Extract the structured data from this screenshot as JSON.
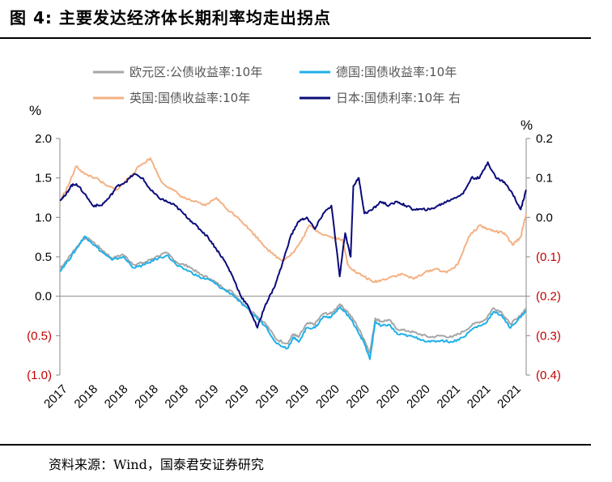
{
  "title": "图 4:  主要发达经济体长期利率均走出拐点",
  "source": "资料来源：Wind，国泰君安证券研究",
  "chart_data": {
    "type": "line",
    "y_left_label": "%",
    "y_right_label": "%",
    "y_left_range": [
      -1.0,
      2.0
    ],
    "y_right_range": [
      -0.4,
      0.2
    ],
    "y_left_ticks": [
      "2.0",
      "1.5",
      "1.0",
      "0.5",
      "0.0",
      "(0.5)",
      "(1.0)"
    ],
    "y_right_ticks": [
      "0.2",
      "0.1",
      "0.0",
      "(0.1)",
      "(0.2)",
      "(0.3)",
      "(0.4)"
    ],
    "x_ticks": [
      "2017",
      "2018",
      "2018",
      "2018",
      "2018",
      "2019",
      "2019",
      "2019",
      "2019",
      "2020",
      "2020",
      "2020",
      "2020",
      "2021",
      "2021",
      "2021"
    ],
    "x_range": [
      2017.9,
      2021.3
    ],
    "negative_tick_color": "#c00000",
    "grid": false,
    "legend_position": "top",
    "series": [
      {
        "name": "欧元区:公债收益率:10年",
        "axis": "left",
        "color": "#a6a6a6",
        "x": [
          2017.9,
          2017.96,
          2018.02,
          2018.08,
          2018.12,
          2018.2,
          2018.28,
          2018.36,
          2018.44,
          2018.52,
          2018.6,
          2018.68,
          2018.76,
          2018.84,
          2018.92,
          2019.0,
          2019.08,
          2019.16,
          2019.24,
          2019.32,
          2019.4,
          2019.48,
          2019.56,
          2019.6,
          2019.64,
          2019.7,
          2019.76,
          2019.82,
          2019.88,
          2019.94,
          2020.0,
          2020.06,
          2020.12,
          2020.16,
          2020.2,
          2020.24,
          2020.3,
          2020.36,
          2020.44,
          2020.52,
          2020.6,
          2020.68,
          2020.76,
          2020.84,
          2020.92,
          2021.0,
          2021.06,
          2021.12,
          2021.18,
          2021.24,
          2021.3
        ],
        "y": [
          0.35,
          0.48,
          0.62,
          0.74,
          0.72,
          0.6,
          0.48,
          0.53,
          0.4,
          0.43,
          0.5,
          0.55,
          0.42,
          0.38,
          0.28,
          0.22,
          0.12,
          0.05,
          -0.1,
          -0.22,
          -0.35,
          -0.55,
          -0.6,
          -0.48,
          -0.52,
          -0.35,
          -0.35,
          -0.22,
          -0.22,
          -0.1,
          -0.2,
          -0.35,
          -0.55,
          -0.72,
          -0.28,
          -0.32,
          -0.3,
          -0.42,
          -0.44,
          -0.48,
          -0.52,
          -0.5,
          -0.52,
          -0.45,
          -0.35,
          -0.3,
          -0.15,
          -0.2,
          -0.35,
          -0.28,
          -0.15
        ]
      },
      {
        "name": "德国:国债收益率:10年",
        "axis": "left",
        "color": "#1fb0e8",
        "x": [
          2017.9,
          2017.96,
          2018.02,
          2018.08,
          2018.12,
          2018.2,
          2018.28,
          2018.36,
          2018.44,
          2018.52,
          2018.6,
          2018.68,
          2018.76,
          2018.84,
          2018.92,
          2019.0,
          2019.08,
          2019.16,
          2019.24,
          2019.32,
          2019.4,
          2019.48,
          2019.56,
          2019.6,
          2019.64,
          2019.7,
          2019.76,
          2019.82,
          2019.88,
          2019.94,
          2020.0,
          2020.06,
          2020.12,
          2020.16,
          2020.2,
          2020.24,
          2020.3,
          2020.36,
          2020.44,
          2020.52,
          2020.6,
          2020.68,
          2020.76,
          2020.84,
          2020.92,
          2021.0,
          2021.06,
          2021.12,
          2021.18,
          2021.24,
          2021.3
        ],
        "y": [
          0.32,
          0.45,
          0.6,
          0.76,
          0.7,
          0.57,
          0.46,
          0.5,
          0.36,
          0.4,
          0.47,
          0.52,
          0.38,
          0.32,
          0.24,
          0.2,
          0.1,
          0.02,
          -0.12,
          -0.25,
          -0.38,
          -0.6,
          -0.66,
          -0.52,
          -0.58,
          -0.4,
          -0.4,
          -0.26,
          -0.26,
          -0.14,
          -0.24,
          -0.4,
          -0.6,
          -0.8,
          -0.32,
          -0.38,
          -0.36,
          -0.48,
          -0.5,
          -0.54,
          -0.58,
          -0.56,
          -0.58,
          -0.52,
          -0.4,
          -0.35,
          -0.2,
          -0.24,
          -0.4,
          -0.3,
          -0.18
        ]
      },
      {
        "name": "英国:国债收益率:10年",
        "axis": "left",
        "color": "#f4b183",
        "x": [
          2017.9,
          2017.96,
          2018.02,
          2018.08,
          2018.16,
          2018.24,
          2018.32,
          2018.4,
          2018.48,
          2018.56,
          2018.64,
          2018.72,
          2018.8,
          2018.88,
          2018.96,
          2019.04,
          2019.12,
          2019.2,
          2019.28,
          2019.36,
          2019.44,
          2019.52,
          2019.6,
          2019.66,
          2019.72,
          2019.8,
          2019.88,
          2019.96,
          2020.0,
          2020.06,
          2020.12,
          2020.18,
          2020.24,
          2020.32,
          2020.4,
          2020.48,
          2020.56,
          2020.64,
          2020.72,
          2020.8,
          2020.88,
          2020.96,
          2021.02,
          2021.08,
          2021.14,
          2021.2,
          2021.26,
          2021.3
        ],
        "y": [
          1.2,
          1.4,
          1.65,
          1.55,
          1.5,
          1.4,
          1.35,
          1.5,
          1.65,
          1.75,
          1.45,
          1.35,
          1.25,
          1.2,
          1.15,
          1.25,
          1.1,
          1.0,
          0.85,
          0.7,
          0.55,
          0.45,
          0.55,
          0.7,
          0.9,
          0.8,
          0.75,
          0.72,
          0.4,
          0.3,
          0.25,
          0.18,
          0.2,
          0.25,
          0.28,
          0.22,
          0.3,
          0.35,
          0.3,
          0.4,
          0.75,
          0.9,
          0.85,
          0.82,
          0.8,
          0.65,
          0.75,
          1.05
        ]
      },
      {
        "name": "日本:国债利率:10年 右",
        "axis": "right",
        "color": "#0b0b7a",
        "x": [
          2017.9,
          2017.94,
          2017.98,
          2018.02,
          2018.08,
          2018.14,
          2018.2,
          2018.26,
          2018.32,
          2018.38,
          2018.44,
          2018.5,
          2018.56,
          2018.62,
          2018.68,
          2018.74,
          2018.8,
          2018.86,
          2018.92,
          2018.98,
          2019.04,
          2019.1,
          2019.16,
          2019.22,
          2019.28,
          2019.34,
          2019.4,
          2019.46,
          2019.52,
          2019.58,
          2019.64,
          2019.7,
          2019.76,
          2019.82,
          2019.88,
          2019.94,
          2019.98,
          2020.02,
          2020.04,
          2020.08,
          2020.12,
          2020.18,
          2020.24,
          2020.3,
          2020.36,
          2020.42,
          2020.48,
          2020.54,
          2020.6,
          2020.66,
          2020.72,
          2020.78,
          2020.84,
          2020.9,
          2020.96,
          2021.02,
          2021.08,
          2021.14,
          2021.2,
          2021.26,
          2021.3
        ],
        "y": [
          0.045,
          0.055,
          0.08,
          0.085,
          0.06,
          0.03,
          0.03,
          0.05,
          0.08,
          0.09,
          0.11,
          0.1,
          0.07,
          0.05,
          0.04,
          0.03,
          0.01,
          -0.01,
          -0.03,
          -0.05,
          -0.08,
          -0.11,
          -0.15,
          -0.2,
          -0.23,
          -0.28,
          -0.22,
          -0.18,
          -0.12,
          -0.05,
          -0.01,
          0.0,
          -0.03,
          0.01,
          0.03,
          -0.15,
          -0.04,
          -0.1,
          0.08,
          0.1,
          0.01,
          0.02,
          0.04,
          0.03,
          0.04,
          0.03,
          0.02,
          0.02,
          0.02,
          0.03,
          0.04,
          0.05,
          0.06,
          0.1,
          0.1,
          0.14,
          0.1,
          0.09,
          0.06,
          0.02,
          0.07
        ]
      }
    ]
  }
}
